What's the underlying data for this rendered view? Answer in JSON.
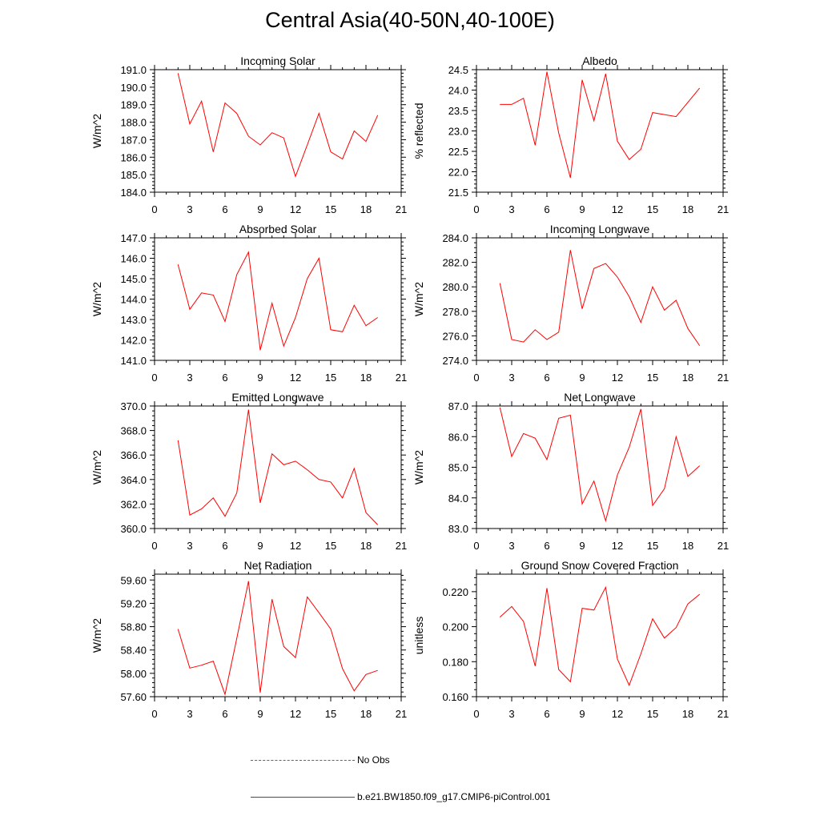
{
  "figure": {
    "title": "Central Asia(40-50N,40-100E)"
  },
  "legend": [
    {
      "label": "No Obs",
      "color": "#5555cc",
      "dash": "dashed"
    },
    {
      "label": "b.e21.BW1850.f09_g17.CMIP6-piControl.001",
      "color": "#ff0000",
      "dash": "solid"
    }
  ],
  "chart_data": [
    {
      "type": "line",
      "title": "Incoming Solar",
      "xlabel": "",
      "ylabel": "W/m^2",
      "xlim": [
        0,
        21
      ],
      "xticks": [
        0,
        3,
        6,
        9,
        12,
        15,
        18,
        21
      ],
      "ylim": [
        184.0,
        191.0
      ],
      "yticks": [
        184.0,
        185.0,
        186.0,
        187.0,
        188.0,
        189.0,
        190.0,
        191.0
      ],
      "ydecimals": 1,
      "series": [
        {
          "name": "b.e21.BW1850.f09_g17.CMIP6-piControl.001",
          "color": "#ff0000",
          "x": [
            2,
            3,
            4,
            5,
            6,
            7,
            8,
            9,
            10,
            11,
            12,
            13,
            14,
            15,
            16,
            17,
            18,
            19
          ],
          "y": [
            190.8,
            187.9,
            189.2,
            186.3,
            189.1,
            188.5,
            187.2,
            186.7,
            187.4,
            187.1,
            184.9,
            186.7,
            188.5,
            186.3,
            185.9,
            187.5,
            186.9,
            188.4
          ]
        }
      ]
    },
    {
      "type": "line",
      "title": "Albedo",
      "xlabel": "",
      "ylabel": "% reflected",
      "xlim": [
        0,
        21
      ],
      "xticks": [
        0,
        3,
        6,
        9,
        12,
        15,
        18,
        21
      ],
      "ylim": [
        21.5,
        24.5
      ],
      "yticks": [
        21.5,
        22.0,
        22.5,
        23.0,
        23.5,
        24.0,
        24.5
      ],
      "ydecimals": 1,
      "series": [
        {
          "name": "b.e21.BW1850.f09_g17.CMIP6-piControl.001",
          "color": "#ff0000",
          "x": [
            2,
            3,
            4,
            5,
            6,
            7,
            8,
            9,
            10,
            11,
            12,
            13,
            14,
            15,
            16,
            17,
            18,
            19
          ],
          "y": [
            23.65,
            23.65,
            23.8,
            22.65,
            24.45,
            22.95,
            21.85,
            24.25,
            23.25,
            24.4,
            22.75,
            22.3,
            22.55,
            23.45,
            23.4,
            23.35,
            23.7,
            24.05
          ]
        }
      ]
    },
    {
      "type": "line",
      "title": "Absorbed Solar",
      "xlabel": "",
      "ylabel": "W/m^2",
      "xlim": [
        0,
        21
      ],
      "xticks": [
        0,
        3,
        6,
        9,
        12,
        15,
        18,
        21
      ],
      "ylim": [
        141.0,
        147.0
      ],
      "yticks": [
        141.0,
        142.0,
        143.0,
        144.0,
        145.0,
        146.0,
        147.0
      ],
      "ydecimals": 1,
      "series": [
        {
          "name": "b.e21.BW1850.f09_g17.CMIP6-piControl.001",
          "color": "#ff0000",
          "x": [
            2,
            3,
            4,
            5,
            6,
            7,
            8,
            9,
            10,
            11,
            12,
            13,
            14,
            15,
            16,
            17,
            18,
            19
          ],
          "y": [
            145.7,
            143.5,
            144.3,
            144.2,
            142.9,
            145.2,
            146.3,
            141.5,
            143.8,
            141.7,
            143.1,
            145.0,
            146.0,
            142.5,
            142.4,
            143.7,
            142.7,
            143.1
          ]
        }
      ]
    },
    {
      "type": "line",
      "title": "Incoming Longwave",
      "xlabel": "",
      "ylabel": "W/m^2",
      "xlim": [
        0,
        21
      ],
      "xticks": [
        0,
        3,
        6,
        9,
        12,
        15,
        18,
        21
      ],
      "ylim": [
        274.0,
        284.0
      ],
      "yticks": [
        274.0,
        276.0,
        278.0,
        280.0,
        282.0,
        284.0
      ],
      "ydecimals": 1,
      "series": [
        {
          "name": "b.e21.BW1850.f09_g17.CMIP6-piControl.001",
          "color": "#ff0000",
          "x": [
            2,
            3,
            4,
            5,
            6,
            7,
            8,
            9,
            10,
            11,
            12,
            13,
            14,
            15,
            16,
            17,
            18,
            19
          ],
          "y": [
            280.3,
            275.7,
            275.5,
            276.5,
            275.7,
            276.3,
            283.0,
            278.2,
            281.5,
            281.9,
            280.8,
            279.2,
            277.1,
            280.0,
            278.1,
            278.9,
            276.6,
            275.2
          ]
        }
      ]
    },
    {
      "type": "line",
      "title": "Emitted Longwave",
      "xlabel": "",
      "ylabel": "W/m^2",
      "xlim": [
        0,
        21
      ],
      "xticks": [
        0,
        3,
        6,
        9,
        12,
        15,
        18,
        21
      ],
      "ylim": [
        360.0,
        370.0
      ],
      "yticks": [
        360.0,
        362.0,
        364.0,
        366.0,
        368.0,
        370.0
      ],
      "ydecimals": 1,
      "series": [
        {
          "name": "b.e21.BW1850.f09_g17.CMIP6-piControl.001",
          "color": "#ff0000",
          "x": [
            2,
            3,
            4,
            5,
            6,
            7,
            8,
            9,
            10,
            11,
            12,
            13,
            14,
            15,
            16,
            17,
            18,
            19
          ],
          "y": [
            367.2,
            361.1,
            361.6,
            362.5,
            361.0,
            362.9,
            369.7,
            362.1,
            366.1,
            365.2,
            365.5,
            364.8,
            364.0,
            363.8,
            362.5,
            364.9,
            361.3,
            360.3
          ]
        }
      ]
    },
    {
      "type": "line",
      "title": "Net Longwave",
      "xlabel": "",
      "ylabel": "W/m^2",
      "xlim": [
        0,
        21
      ],
      "xticks": [
        0,
        3,
        6,
        9,
        12,
        15,
        18,
        21
      ],
      "ylim": [
        83.0,
        87.0
      ],
      "yticks": [
        83.0,
        84.0,
        85.0,
        86.0,
        87.0
      ],
      "ydecimals": 1,
      "series": [
        {
          "name": "b.e21.BW1850.f09_g17.CMIP6-piControl.001",
          "color": "#ff0000",
          "x": [
            2,
            3,
            4,
            5,
            6,
            7,
            8,
            9,
            10,
            11,
            12,
            13,
            14,
            15,
            16,
            17,
            18,
            19
          ],
          "y": [
            86.95,
            85.35,
            86.1,
            85.95,
            85.25,
            86.6,
            86.7,
            83.8,
            84.55,
            83.25,
            84.75,
            85.65,
            86.9,
            83.75,
            84.3,
            86.0,
            84.7,
            85.05
          ]
        }
      ]
    },
    {
      "type": "line",
      "title": "Net Radiation",
      "xlabel": "",
      "ylabel": "W/m^2",
      "xlim": [
        0,
        21
      ],
      "xticks": [
        0,
        3,
        6,
        9,
        12,
        15,
        18,
        21
      ],
      "ylim": [
        57.6,
        59.7
      ],
      "yticks": [
        57.6,
        58.0,
        58.4,
        58.8,
        59.2,
        59.6
      ],
      "ydecimals": 2,
      "series": [
        {
          "name": "b.e21.BW1850.f09_g17.CMIP6-piControl.001",
          "color": "#ff0000",
          "x": [
            2,
            3,
            4,
            5,
            6,
            7,
            8,
            9,
            10,
            11,
            12,
            13,
            14,
            15,
            16,
            17,
            18,
            19
          ],
          "y": [
            58.76,
            58.09,
            58.14,
            58.21,
            57.64,
            58.6,
            59.58,
            57.67,
            59.27,
            58.46,
            58.27,
            59.31,
            59.04,
            58.76,
            58.08,
            57.7,
            57.98,
            58.05
          ]
        }
      ]
    },
    {
      "type": "line",
      "title": "Ground Snow Covered Fraction",
      "xlabel": "",
      "ylabel": "unitless",
      "xlim": [
        0,
        21
      ],
      "xticks": [
        0,
        3,
        6,
        9,
        12,
        15,
        18,
        21
      ],
      "ylim": [
        0.16,
        0.23
      ],
      "yticks": [
        0.16,
        0.18,
        0.2,
        0.22
      ],
      "ydecimals": 3,
      "series": [
        {
          "name": "b.e21.BW1850.f09_g17.CMIP6-piControl.001",
          "color": "#ff0000",
          "x": [
            2,
            3,
            4,
            5,
            6,
            7,
            8,
            9,
            10,
            11,
            12,
            13,
            14,
            15,
            16,
            17,
            18,
            19
          ],
          "y": [
            0.2055,
            0.2115,
            0.203,
            0.1775,
            0.222,
            0.1755,
            0.1685,
            0.2105,
            0.2095,
            0.2225,
            0.1815,
            0.1665,
            0.1845,
            0.2045,
            0.1935,
            0.1995,
            0.213,
            0.2185
          ]
        }
      ]
    }
  ]
}
